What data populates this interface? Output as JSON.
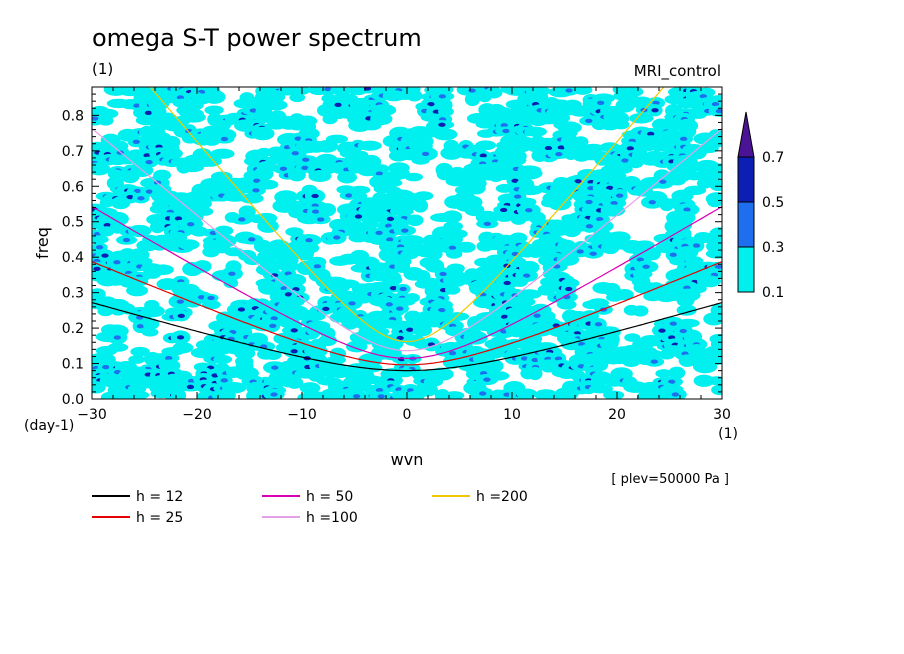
{
  "chart_data": {
    "type": "contour",
    "title": "omega S-T power spectrum",
    "units_label": "(1)",
    "model_label": "MRI_control",
    "xlabel": "wvn",
    "ylabel": "freq",
    "x_unit": "(1)",
    "y_unit": "(day-1)",
    "level_note": "[ plev=50000 Pa ]",
    "xlim": [
      -30,
      30
    ],
    "ylim": [
      0,
      0.88
    ],
    "xticks": [
      -30,
      -20,
      -10,
      0,
      10,
      20,
      30
    ],
    "yticks": [
      0.0,
      0.1,
      0.2,
      0.3,
      0.4,
      0.5,
      0.6,
      0.7,
      0.8
    ],
    "colorbar": {
      "levels": [
        0.1,
        0.3,
        0.5,
        0.7
      ],
      "colors": [
        "#00f0f0",
        "#1e6ef0",
        "#0c1eb4",
        "#4b1496"
      ]
    },
    "dispersion_curves": [
      {
        "name": "h = 12",
        "h": 12,
        "color": "#000000"
      },
      {
        "name": "h = 25",
        "h": 25,
        "color": "#e60000"
      },
      {
        "name": "h = 50",
        "h": 50,
        "color": "#dc00b4"
      },
      {
        "name": "h =100",
        "h": 100,
        "color": "#e6a0e6"
      },
      {
        "name": "h =200",
        "h": 200,
        "color": "#f0c800"
      }
    ]
  }
}
